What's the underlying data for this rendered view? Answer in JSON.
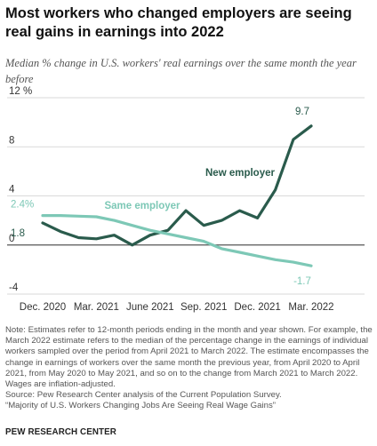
{
  "chart_data": {
    "type": "line",
    "title": "Most workers who changed employers are seeing real gains in earnings into 2022",
    "subtitle": "Median % change in U.S. workers' real earnings over the same month the year before",
    "x": [
      "Dec. 2020",
      "Jan. 2021",
      "Feb. 2021",
      "Mar. 2021",
      "Apr. 2021",
      "May 2021",
      "June 2021",
      "July 2021",
      "Aug. 2021",
      "Sep. 2021",
      "Oct. 2021",
      "Nov. 2021",
      "Dec. 2021",
      "Jan. 2022",
      "Feb. 2022",
      "Mar. 2022"
    ],
    "x_tick_labels": [
      "Dec. 2020",
      "Mar. 2021",
      "June 2021",
      "Sep. 2021",
      "Dec. 2021",
      "Mar. 2022"
    ],
    "y_ticks": [
      -4,
      0,
      4,
      8,
      12
    ],
    "y_tick_labels": [
      "-4",
      "0",
      "4",
      "8",
      "12 %"
    ],
    "ylim": [
      -4,
      12
    ],
    "series": [
      {
        "name": "New employer",
        "color": "#2a5b4c",
        "values": [
          1.8,
          1.1,
          0.6,
          0.5,
          0.8,
          0.0,
          0.8,
          1.2,
          2.8,
          1.6,
          2.0,
          2.8,
          2.2,
          4.5,
          8.6,
          9.7
        ],
        "start_label": "1.8",
        "end_label": "9.7"
      },
      {
        "name": "Same employer",
        "color": "#7dc8b6",
        "values": [
          2.4,
          2.4,
          2.35,
          2.3,
          2.0,
          1.6,
          1.2,
          0.9,
          0.6,
          0.3,
          -0.3,
          -0.6,
          -0.9,
          -1.2,
          -1.4,
          -1.7
        ],
        "start_label": "2.4%",
        "end_label": "-1.7"
      }
    ]
  },
  "notes": [
    "Note: Estimates refer to 12-month periods ending in the month and year shown. For example, the March 2022 estimate refers to the median of the percentage change in the earnings of individual workers sampled over the period from April 2021 to March 2022. The estimate encompasses the change in earnings of workers over the same month the previous year, from April 2020 to April 2021, from May 2020 to May 2021, and so on to the change from March 2021 to March 2022. Wages are inflation-adjusted.",
    "Source: Pew Research Center analysis of the Current Population Survey.",
    "“Majority of U.S. Workers Changing Jobs Are Seeing Real Wage Gains”"
  ],
  "brand": "PEW RESEARCH CENTER",
  "colors": {
    "new_employer": "#2a5b4c",
    "same_employer": "#7dc8b6",
    "gridline": "#d9d9d9",
    "zero_line": "#555555"
  }
}
